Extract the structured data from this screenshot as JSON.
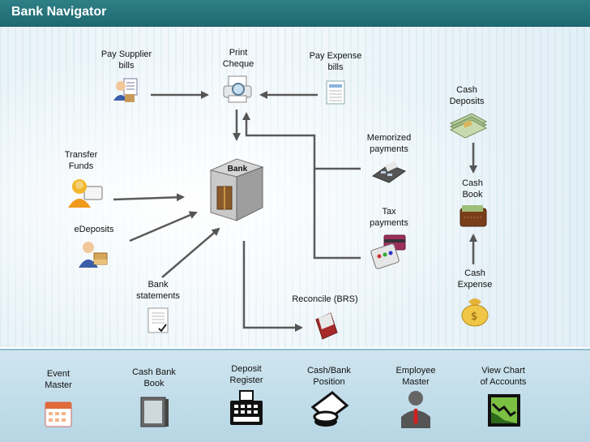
{
  "window": {
    "title": "Bank Navigator"
  },
  "diagram": {
    "pay_supplier": "Pay Supplier\nbills",
    "print_cheque": "Print\nCheque",
    "pay_expense": "Pay Expense\nbills",
    "transfer_funds": "Transfer\nFunds",
    "bank": "Bank",
    "edeposits": "eDeposits",
    "bank_statements": "Bank\nstatements",
    "memorized_payments": "Memorized\npayments",
    "tax_payments": "Tax\npayments",
    "reconcile": "Reconcile (BRS)",
    "cash_deposits": "Cash\nDeposits",
    "cash_book": "Cash\nBook",
    "cash_expense": "Cash\nExpense"
  },
  "toolbar": {
    "event_master": "Event\nMaster",
    "cash_bank_book": "Cash Bank\nBook",
    "deposit_register": "Deposit\nRegister",
    "cash_bank_position": "Cash/Bank\nPosition",
    "employee_master": "Employee\nMaster",
    "view_chart": "View Chart\nof Accounts"
  },
  "icons": {
    "pay_supplier": "person-document-icon",
    "print_cheque": "printer-icon",
    "pay_expense": "invoice-icon",
    "transfer_funds": "person-transfer-icon",
    "bank": "bank-building-icon",
    "edeposits": "person-box-icon",
    "bank_statements": "document-icon",
    "memorized_payments": "card-reader-icon",
    "tax_payments": "credit-card-keypad-icon",
    "reconcile": "reconcile-book-icon",
    "cash_deposits": "money-stack-icon",
    "cash_book": "wallet-icon",
    "cash_expense": "money-bag-icon",
    "event_master": "calendar-icon",
    "cash_bank_book": "ledger-book-icon",
    "deposit_register": "cash-register-icon",
    "cash_bank_position": "coins-icon",
    "employee_master": "employee-icon",
    "view_chart": "chart-icon"
  },
  "colors": {
    "titlebar": "#2a7a82",
    "arrow": "#555555",
    "bottombar": "#c4deea"
  }
}
